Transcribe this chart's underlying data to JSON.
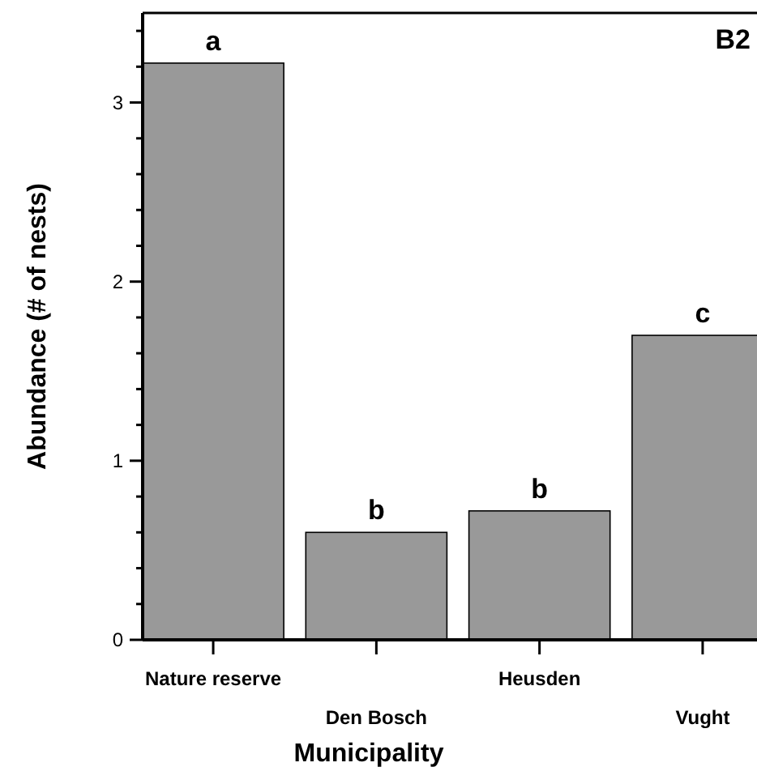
{
  "chart_data": {
    "type": "bar",
    "xlabel": "Municipality",
    "ylabel": "Abundance (# of nests)",
    "categories": [
      "Nature reserve",
      "Den Bosch",
      "Heusden",
      "Vught"
    ],
    "values": [
      3.22,
      0.6,
      0.72,
      1.7
    ],
    "color": "#999999",
    "ylim": [
      0,
      3.5
    ],
    "yticks": [
      0,
      {
        "value": 0.2,
        "label": null
      },
      {
        "value": 0.4,
        "label": null
      },
      {
        "value": 0.6,
        "label": null
      },
      {
        "value": 0.8,
        "label": null
      },
      1,
      {
        "value": 1.2,
        "label": null
      },
      {
        "value": 1.4,
        "label": null
      },
      {
        "value": 1.6,
        "label": null
      },
      {
        "value": 1.8,
        "label": null
      },
      2,
      {
        "value": 2.2,
        "label": null
      },
      {
        "value": 2.4,
        "label": null
      },
      {
        "value": 2.6,
        "label": null
      },
      {
        "value": 2.8,
        "label": null
      },
      3,
      {
        "value": 3.2,
        "label": null
      },
      {
        "value": 3.4,
        "label": null
      }
    ],
    "annotations": [
      "B2",
      {
        "text": "a",
        "x": "Nature reserve",
        "y": 3.22
      },
      {
        "text": "b",
        "x": "Den Bosch",
        "y": 0.6
      },
      {
        "text": "b",
        "x": "Heusden",
        "y": 0.72
      },
      {
        "text": "c",
        "x": "Vught",
        "y": 1.7
      }
    ],
    "grid": false
  }
}
